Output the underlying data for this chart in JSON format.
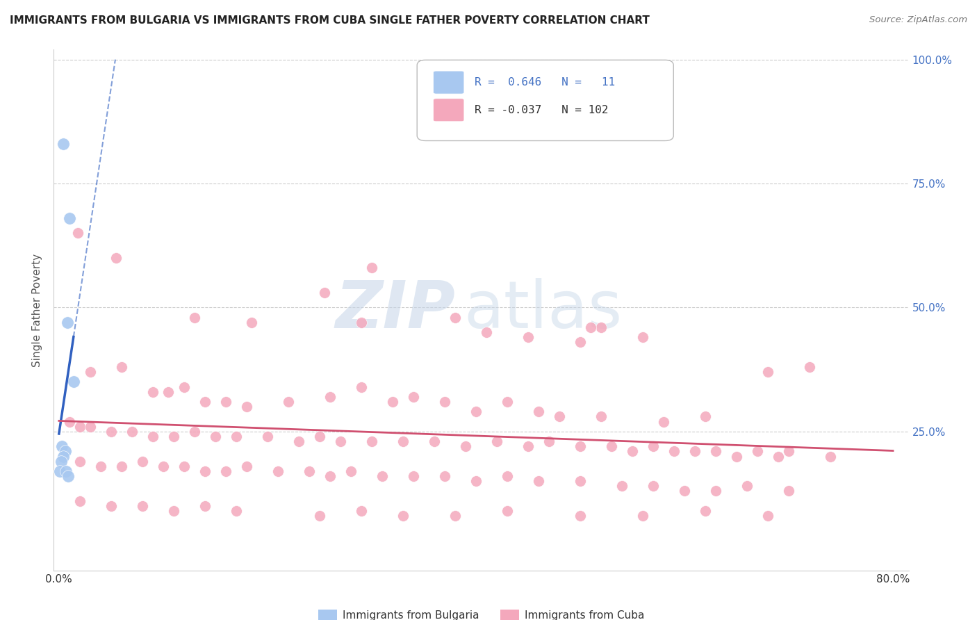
{
  "title": "IMMIGRANTS FROM BULGARIA VS IMMIGRANTS FROM CUBA SINGLE FATHER POVERTY CORRELATION CHART",
  "source": "Source: ZipAtlas.com",
  "ylabel": "Single Father Poverty",
  "xlim": [
    0.0,
    0.8
  ],
  "ylim": [
    0.0,
    1.0
  ],
  "bulgaria_color": "#A8C8F0",
  "cuba_color": "#F4A8BC",
  "bulgaria_line_color": "#3060C0",
  "cuba_line_color": "#D05070",
  "watermark_zip": "ZIP",
  "watermark_atlas": "atlas",
  "bulgaria_points": [
    [
      0.004,
      0.83
    ],
    [
      0.01,
      0.68
    ],
    [
      0.008,
      0.47
    ],
    [
      0.014,
      0.35
    ],
    [
      0.003,
      0.22
    ],
    [
      0.006,
      0.21
    ],
    [
      0.004,
      0.2
    ],
    [
      0.002,
      0.19
    ],
    [
      0.001,
      0.17
    ],
    [
      0.007,
      0.17
    ],
    [
      0.009,
      0.16
    ]
  ],
  "cuba_points": [
    [
      0.018,
      0.65
    ],
    [
      0.055,
      0.6
    ],
    [
      0.3,
      0.58
    ],
    [
      0.13,
      0.48
    ],
    [
      0.185,
      0.47
    ],
    [
      0.255,
      0.53
    ],
    [
      0.29,
      0.47
    ],
    [
      0.38,
      0.48
    ],
    [
      0.52,
      0.46
    ],
    [
      0.5,
      0.43
    ],
    [
      0.41,
      0.45
    ],
    [
      0.45,
      0.44
    ],
    [
      0.51,
      0.46
    ],
    [
      0.56,
      0.44
    ],
    [
      0.68,
      0.37
    ],
    [
      0.72,
      0.38
    ],
    [
      0.03,
      0.37
    ],
    [
      0.06,
      0.38
    ],
    [
      0.09,
      0.33
    ],
    [
      0.105,
      0.33
    ],
    [
      0.12,
      0.34
    ],
    [
      0.14,
      0.31
    ],
    [
      0.16,
      0.31
    ],
    [
      0.18,
      0.3
    ],
    [
      0.22,
      0.31
    ],
    [
      0.26,
      0.32
    ],
    [
      0.29,
      0.34
    ],
    [
      0.32,
      0.31
    ],
    [
      0.34,
      0.32
    ],
    [
      0.37,
      0.31
    ],
    [
      0.4,
      0.29
    ],
    [
      0.43,
      0.31
    ],
    [
      0.46,
      0.29
    ],
    [
      0.48,
      0.28
    ],
    [
      0.52,
      0.28
    ],
    [
      0.58,
      0.27
    ],
    [
      0.62,
      0.28
    ],
    [
      0.01,
      0.27
    ],
    [
      0.02,
      0.26
    ],
    [
      0.03,
      0.26
    ],
    [
      0.05,
      0.25
    ],
    [
      0.07,
      0.25
    ],
    [
      0.09,
      0.24
    ],
    [
      0.11,
      0.24
    ],
    [
      0.13,
      0.25
    ],
    [
      0.15,
      0.24
    ],
    [
      0.17,
      0.24
    ],
    [
      0.2,
      0.24
    ],
    [
      0.23,
      0.23
    ],
    [
      0.25,
      0.24
    ],
    [
      0.27,
      0.23
    ],
    [
      0.3,
      0.23
    ],
    [
      0.33,
      0.23
    ],
    [
      0.36,
      0.23
    ],
    [
      0.39,
      0.22
    ],
    [
      0.42,
      0.23
    ],
    [
      0.45,
      0.22
    ],
    [
      0.47,
      0.23
    ],
    [
      0.5,
      0.22
    ],
    [
      0.53,
      0.22
    ],
    [
      0.55,
      0.21
    ],
    [
      0.57,
      0.22
    ],
    [
      0.59,
      0.21
    ],
    [
      0.61,
      0.21
    ],
    [
      0.63,
      0.21
    ],
    [
      0.65,
      0.2
    ],
    [
      0.67,
      0.21
    ],
    [
      0.69,
      0.2
    ],
    [
      0.7,
      0.21
    ],
    [
      0.02,
      0.19
    ],
    [
      0.04,
      0.18
    ],
    [
      0.06,
      0.18
    ],
    [
      0.08,
      0.19
    ],
    [
      0.1,
      0.18
    ],
    [
      0.12,
      0.18
    ],
    [
      0.14,
      0.17
    ],
    [
      0.16,
      0.17
    ],
    [
      0.18,
      0.18
    ],
    [
      0.21,
      0.17
    ],
    [
      0.24,
      0.17
    ],
    [
      0.26,
      0.16
    ],
    [
      0.28,
      0.17
    ],
    [
      0.31,
      0.16
    ],
    [
      0.34,
      0.16
    ],
    [
      0.37,
      0.16
    ],
    [
      0.4,
      0.15
    ],
    [
      0.43,
      0.16
    ],
    [
      0.46,
      0.15
    ],
    [
      0.5,
      0.15
    ],
    [
      0.54,
      0.14
    ],
    [
      0.57,
      0.14
    ],
    [
      0.6,
      0.13
    ],
    [
      0.63,
      0.13
    ],
    [
      0.66,
      0.14
    ],
    [
      0.7,
      0.13
    ],
    [
      0.74,
      0.2
    ],
    [
      0.02,
      0.11
    ],
    [
      0.05,
      0.1
    ],
    [
      0.08,
      0.1
    ],
    [
      0.11,
      0.09
    ],
    [
      0.14,
      0.1
    ],
    [
      0.17,
      0.09
    ],
    [
      0.25,
      0.08
    ],
    [
      0.29,
      0.09
    ],
    [
      0.33,
      0.08
    ],
    [
      0.38,
      0.08
    ],
    [
      0.43,
      0.09
    ],
    [
      0.5,
      0.08
    ],
    [
      0.56,
      0.08
    ],
    [
      0.62,
      0.09
    ],
    [
      0.68,
      0.08
    ]
  ]
}
